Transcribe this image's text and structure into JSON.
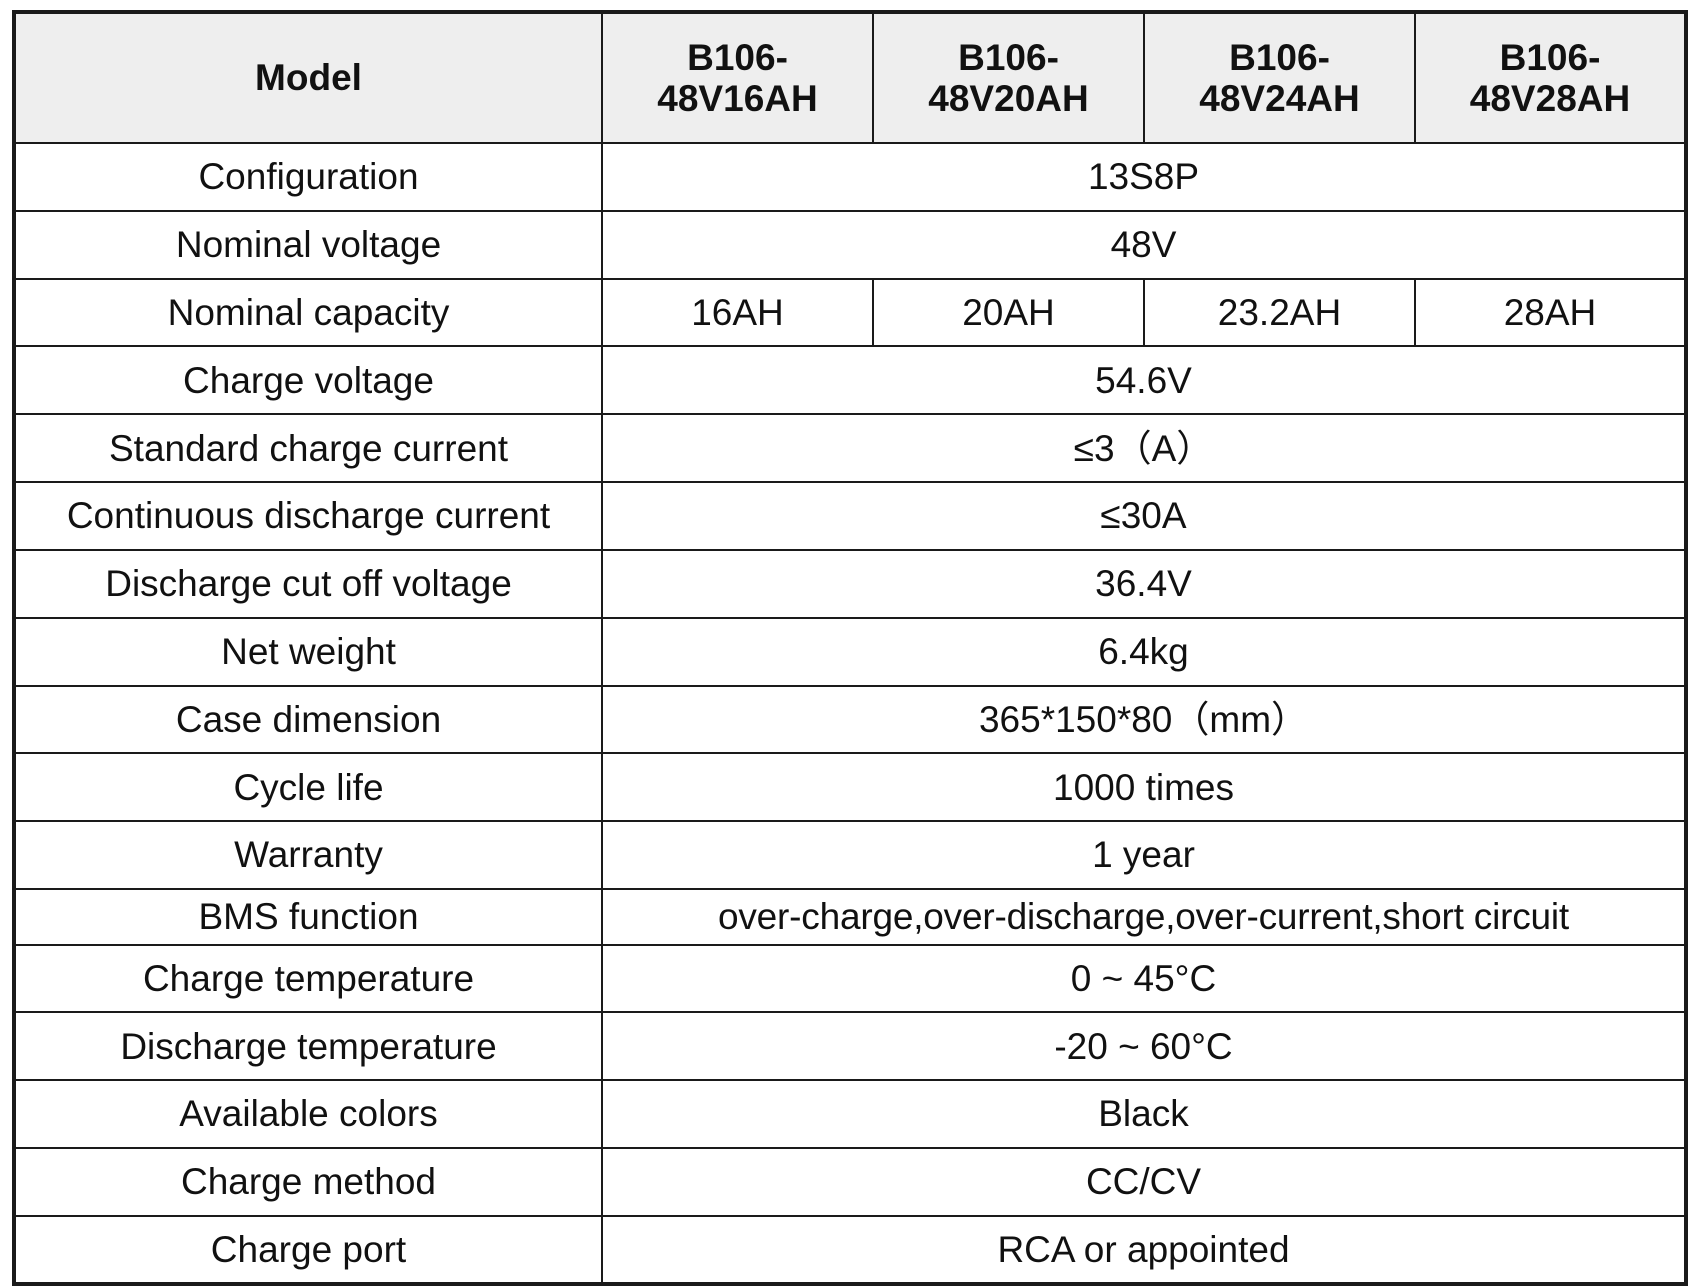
{
  "table": {
    "header_label": "Model",
    "models": [
      "B106-48V16AH",
      "B106-48V20AH",
      "B106-48V24AH",
      "B106-48V28AH"
    ],
    "rows": [
      {
        "label": "Configuration",
        "value": "13S8P"
      },
      {
        "label": "Nominal voltage",
        "value": "48V"
      },
      {
        "label": "Nominal capacity",
        "values": [
          "16AH",
          "20AH",
          "23.2AH",
          "28AH"
        ]
      },
      {
        "label": "Charge voltage",
        "value": "54.6V"
      },
      {
        "label": "Standard charge current",
        "value": "≤3（A）"
      },
      {
        "label": "Continuous discharge current",
        "value": "≤30A"
      },
      {
        "label": "Discharge cut off voltage",
        "value": "36.4V"
      },
      {
        "label": "Net weight",
        "value": "6.4kg"
      },
      {
        "label": "Case dimension",
        "value": "365*150*80（mm）"
      },
      {
        "label": "Cycle life",
        "value": "1000 times"
      },
      {
        "label": "Warranty",
        "value": "1 year"
      },
      {
        "label": "BMS function",
        "value": "over-charge,over-discharge,over-current,short circuit"
      },
      {
        "label": "Charge temperature",
        "value": "0 ~ 45°C"
      },
      {
        "label": "Discharge temperature",
        "value": "-20 ~ 60°C"
      },
      {
        "label": "Available colors",
        "value": "Black"
      },
      {
        "label": "Charge method",
        "value": "CC/CV"
      },
      {
        "label": "Charge port",
        "value": "RCA or appointed"
      }
    ]
  }
}
